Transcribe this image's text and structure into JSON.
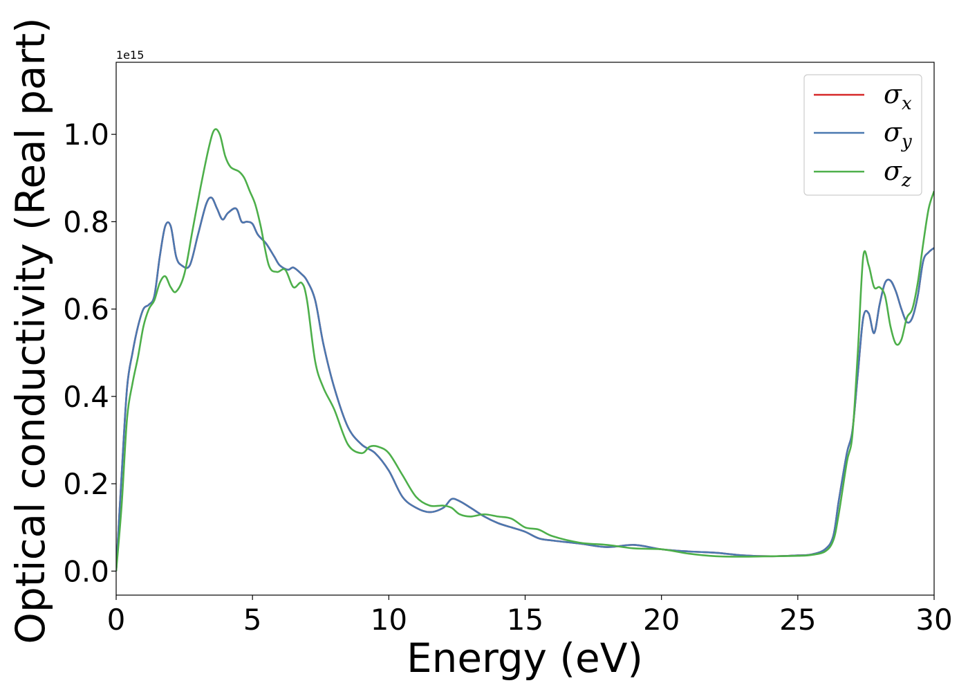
{
  "chart_data": {
    "type": "line",
    "xlabel": "Energy (eV)",
    "ylabel": "Optical conductivity (Real part)",
    "y_offset_text": "1e15",
    "xlim": [
      0,
      30
    ],
    "ylim": [
      -0.055,
      1.165
    ],
    "xticks": [
      0,
      5,
      10,
      15,
      20,
      25,
      30
    ],
    "xtick_labels": [
      "0",
      "5",
      "10",
      "15",
      "20",
      "25",
      "30"
    ],
    "yticks": [
      0.0,
      0.2,
      0.4,
      0.6,
      0.8,
      1.0
    ],
    "ytick_labels": [
      "0.0",
      "0.2",
      "0.4",
      "0.6",
      "0.8",
      "1.0"
    ],
    "grid": false,
    "legend_position": "top-right",
    "series": [
      {
        "name": "σx",
        "legend_symbol": "σ",
        "legend_sub": "x",
        "color": "#d62728",
        "x": [
          0,
          0.2,
          0.4,
          0.6,
          0.8,
          1.0,
          1.2,
          1.4,
          1.6,
          1.8,
          2.0,
          2.2,
          2.4,
          2.7,
          3.0,
          3.3,
          3.5,
          3.7,
          3.9,
          4.1,
          4.4,
          4.6,
          4.8,
          5.0,
          5.2,
          5.5,
          5.8,
          6.0,
          6.3,
          6.5,
          6.8,
          7.0,
          7.3,
          7.6,
          8.0,
          8.5,
          9.0,
          9.5,
          10.0,
          10.5,
          11.0,
          11.5,
          12.0,
          12.3,
          12.6,
          13.0,
          13.5,
          14.0,
          14.5,
          15.0,
          15.5,
          16.0,
          17.0,
          18.0,
          19.0,
          20.0,
          21.0,
          22.0,
          23.0,
          24.0,
          25.0,
          25.5,
          26.0,
          26.3,
          26.5,
          26.8,
          27.0,
          27.2,
          27.4,
          27.6,
          27.8,
          28.0,
          28.2,
          28.4,
          28.6,
          28.8,
          29.0,
          29.2,
          29.4,
          29.6,
          29.8,
          30.0
        ],
        "y": [
          0.0,
          0.22,
          0.42,
          0.5,
          0.56,
          0.6,
          0.61,
          0.63,
          0.72,
          0.79,
          0.79,
          0.72,
          0.7,
          0.7,
          0.77,
          0.84,
          0.855,
          0.83,
          0.805,
          0.82,
          0.83,
          0.8,
          0.8,
          0.795,
          0.77,
          0.75,
          0.72,
          0.7,
          0.69,
          0.695,
          0.68,
          0.665,
          0.62,
          0.52,
          0.42,
          0.33,
          0.29,
          0.27,
          0.23,
          0.17,
          0.145,
          0.135,
          0.145,
          0.165,
          0.16,
          0.145,
          0.125,
          0.11,
          0.1,
          0.09,
          0.075,
          0.07,
          0.063,
          0.055,
          0.06,
          0.05,
          0.045,
          0.042,
          0.036,
          0.034,
          0.036,
          0.038,
          0.05,
          0.08,
          0.16,
          0.27,
          0.32,
          0.45,
          0.58,
          0.59,
          0.545,
          0.61,
          0.66,
          0.665,
          0.64,
          0.6,
          0.57,
          0.58,
          0.63,
          0.71,
          0.73,
          0.74
        ]
      },
      {
        "name": "σy",
        "legend_symbol": "σ",
        "legend_sub": "y",
        "color": "#4a78b0",
        "x": [
          0,
          0.2,
          0.4,
          0.6,
          0.8,
          1.0,
          1.2,
          1.4,
          1.6,
          1.8,
          2.0,
          2.2,
          2.4,
          2.7,
          3.0,
          3.3,
          3.5,
          3.7,
          3.9,
          4.1,
          4.4,
          4.6,
          4.8,
          5.0,
          5.2,
          5.5,
          5.8,
          6.0,
          6.3,
          6.5,
          6.8,
          7.0,
          7.3,
          7.6,
          8.0,
          8.5,
          9.0,
          9.5,
          10.0,
          10.5,
          11.0,
          11.5,
          12.0,
          12.3,
          12.6,
          13.0,
          13.5,
          14.0,
          14.5,
          15.0,
          15.5,
          16.0,
          17.0,
          18.0,
          19.0,
          20.0,
          21.0,
          22.0,
          23.0,
          24.0,
          25.0,
          25.5,
          26.0,
          26.3,
          26.5,
          26.8,
          27.0,
          27.2,
          27.4,
          27.6,
          27.8,
          28.0,
          28.2,
          28.4,
          28.6,
          28.8,
          29.0,
          29.2,
          29.4,
          29.6,
          29.8,
          30.0
        ],
        "y": [
          0.0,
          0.22,
          0.42,
          0.5,
          0.56,
          0.6,
          0.61,
          0.63,
          0.72,
          0.79,
          0.79,
          0.72,
          0.7,
          0.7,
          0.77,
          0.84,
          0.855,
          0.83,
          0.805,
          0.82,
          0.83,
          0.8,
          0.8,
          0.795,
          0.77,
          0.75,
          0.72,
          0.7,
          0.69,
          0.695,
          0.68,
          0.665,
          0.62,
          0.52,
          0.42,
          0.33,
          0.29,
          0.27,
          0.23,
          0.17,
          0.145,
          0.135,
          0.145,
          0.165,
          0.16,
          0.145,
          0.125,
          0.11,
          0.1,
          0.09,
          0.075,
          0.07,
          0.063,
          0.055,
          0.06,
          0.05,
          0.045,
          0.042,
          0.036,
          0.034,
          0.036,
          0.038,
          0.05,
          0.08,
          0.16,
          0.27,
          0.32,
          0.45,
          0.58,
          0.59,
          0.545,
          0.61,
          0.66,
          0.665,
          0.64,
          0.6,
          0.57,
          0.58,
          0.63,
          0.71,
          0.73,
          0.74
        ]
      },
      {
        "name": "σz",
        "legend_symbol": "σ",
        "legend_sub": "z",
        "color": "#4daf4a",
        "x": [
          0,
          0.2,
          0.4,
          0.6,
          0.8,
          1.0,
          1.2,
          1.4,
          1.6,
          1.8,
          2.0,
          2.2,
          2.5,
          2.8,
          3.1,
          3.4,
          3.6,
          3.8,
          4.0,
          4.2,
          4.5,
          4.7,
          4.9,
          5.1,
          5.3,
          5.6,
          5.9,
          6.2,
          6.5,
          6.8,
          7.0,
          7.3,
          7.6,
          8.0,
          8.5,
          9.0,
          9.3,
          9.6,
          10.0,
          10.5,
          11.0,
          11.5,
          12.0,
          12.3,
          12.6,
          13.0,
          13.5,
          14.0,
          14.5,
          15.0,
          15.5,
          16.0,
          17.0,
          18.0,
          19.0,
          20.0,
          21.0,
          22.0,
          23.0,
          24.0,
          25.0,
          25.5,
          26.0,
          26.3,
          26.5,
          26.8,
          27.0,
          27.2,
          27.4,
          27.6,
          27.8,
          28.0,
          28.2,
          28.4,
          28.6,
          28.8,
          29.0,
          29.2,
          29.4,
          29.6,
          29.8,
          30.0
        ],
        "y": [
          0.0,
          0.15,
          0.35,
          0.43,
          0.49,
          0.56,
          0.6,
          0.62,
          0.66,
          0.675,
          0.65,
          0.64,
          0.68,
          0.78,
          0.88,
          0.97,
          1.01,
          1.0,
          0.95,
          0.925,
          0.915,
          0.9,
          0.87,
          0.84,
          0.79,
          0.7,
          0.685,
          0.69,
          0.65,
          0.66,
          0.62,
          0.48,
          0.42,
          0.37,
          0.29,
          0.27,
          0.285,
          0.285,
          0.27,
          0.22,
          0.17,
          0.15,
          0.15,
          0.145,
          0.13,
          0.125,
          0.13,
          0.125,
          0.12,
          0.1,
          0.095,
          0.08,
          0.065,
          0.06,
          0.052,
          0.05,
          0.04,
          0.034,
          0.033,
          0.034,
          0.035,
          0.037,
          0.045,
          0.07,
          0.13,
          0.25,
          0.31,
          0.5,
          0.72,
          0.7,
          0.65,
          0.65,
          0.63,
          0.56,
          0.52,
          0.53,
          0.58,
          0.6,
          0.66,
          0.75,
          0.83,
          0.87
        ]
      }
    ]
  }
}
